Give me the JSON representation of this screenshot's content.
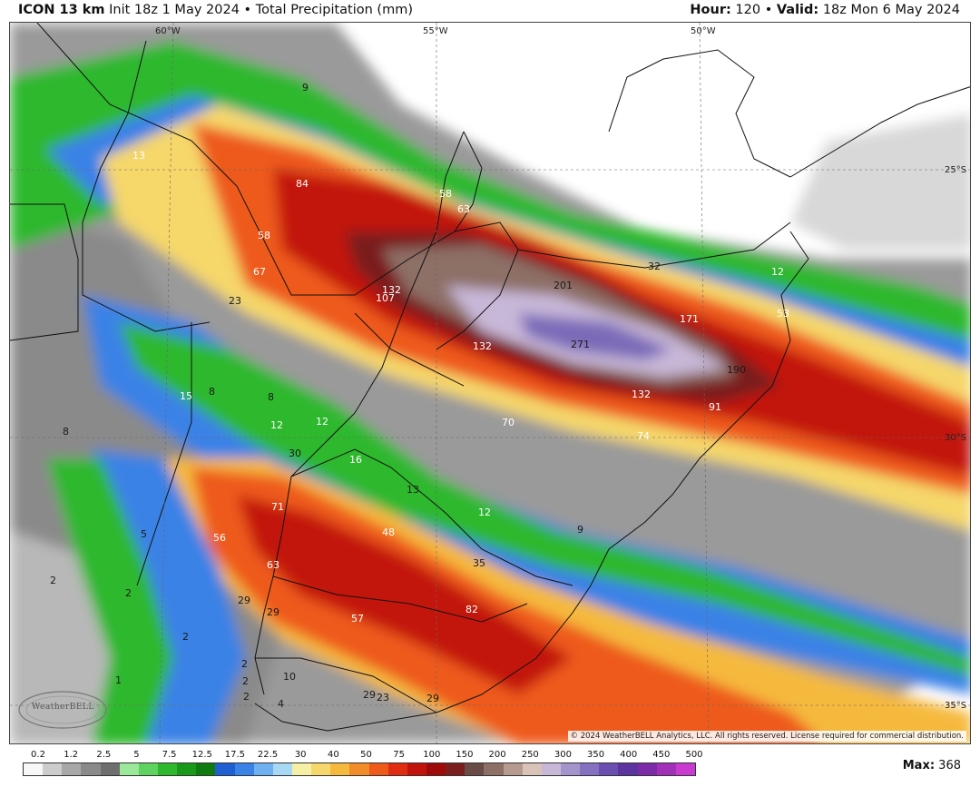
{
  "header": {
    "model": "ICON 13 km",
    "init": "Init 18z 1 May 2024",
    "bullet": "•",
    "variable": "Total Precipitation (mm)",
    "hour_label": "Hour:",
    "hour_value": "120",
    "valid_label": "Valid:",
    "valid_value": "18z Mon 6 May 2024"
  },
  "map": {
    "lon_labels": [
      "60°W",
      "55°W",
      "50°W"
    ],
    "lat_labels": [
      "25°S",
      "30°S",
      "35°S"
    ],
    "copyright": "© 2024 WeatherBELL Analytics, LLC. All rights reserved. License required for commercial distribution.",
    "logo_text": "WeatherBELL",
    "values": [
      "9",
      "13",
      "84",
      "58",
      "63",
      "58",
      "67",
      "23",
      "132",
      "107",
      "201",
      "171",
      "132",
      "271",
      "190",
      "32",
      "12",
      "53",
      "15",
      "8",
      "8",
      "12",
      "12",
      "70",
      "132",
      "91",
      "74",
      "30",
      "16",
      "13",
      "12",
      "9",
      "71",
      "56",
      "48",
      "63",
      "35",
      "82",
      "57",
      "29",
      "29",
      "10",
      "2",
      "2",
      "29",
      "23",
      "29",
      "2",
      "4",
      "5",
      "8",
      "2",
      "1",
      "2",
      "2"
    ]
  },
  "legend": {
    "labels": [
      "0.2",
      "1.2",
      "2.5",
      "5",
      "7.5",
      "12.5",
      "17.5",
      "22.5",
      "30",
      "40",
      "50",
      "75",
      "100",
      "150",
      "200",
      "250",
      "300",
      "350",
      "400",
      "450",
      "500"
    ],
    "colors": [
      "#f7f7f7",
      "#cccccc",
      "#a8a8a8",
      "#8a8a8a",
      "#6e6e6e",
      "#9ae89a",
      "#5fd35f",
      "#2eb82e",
      "#199919",
      "#0f7a0f",
      "#1f5fd1",
      "#3b82e6",
      "#6fb0f0",
      "#a9d8f5",
      "#f5f0a6",
      "#f5d76b",
      "#f5b93d",
      "#f28c28",
      "#ee5a1a",
      "#e02d12",
      "#c2120c",
      "#9e0a0a",
      "#7a1e1e",
      "#6b4b45",
      "#8d6f66",
      "#b59a90",
      "#d9c2b8",
      "#c8b8d8",
      "#a594cc",
      "#8571c0",
      "#6a4fb0",
      "#5b34a0",
      "#7b2aa8",
      "#a12fb8",
      "#c83ad0"
    ],
    "max_label": "Max:",
    "max_value": "368"
  }
}
